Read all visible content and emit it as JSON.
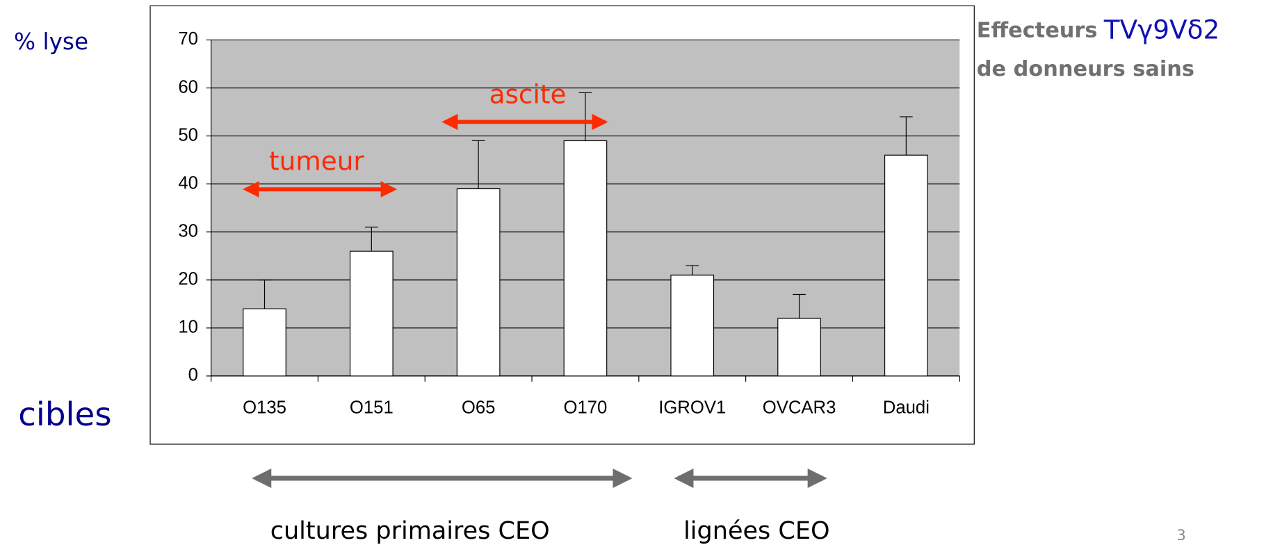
{
  "chart_data": {
    "type": "bar",
    "title": {
      "bold": "Effecteurs",
      "rest": "TVγ9Vδ2"
    },
    "subtitle": "de donneurs sains",
    "ylabel": "% lyse",
    "xlabel": "cibles",
    "categories": [
      "O135",
      "O151",
      "O65",
      "O170",
      "IGROV1",
      "OVCAR3",
      "Daudi"
    ],
    "values": [
      14,
      26,
      39,
      49,
      21,
      12,
      46
    ],
    "errors": [
      6,
      5,
      10,
      10,
      2,
      5,
      8
    ],
    "color": "#ffffff",
    "background": "#c0c0c0",
    "ylim": [
      0,
      70
    ],
    "yticks": [
      0,
      10,
      20,
      30,
      40,
      50,
      60,
      70
    ],
    "grid": true,
    "annotations": [
      "tumeur",
      "ascite"
    ],
    "groups": [
      "cultures primaires CEO",
      "lignées CEO"
    ]
  },
  "page_number": "3"
}
